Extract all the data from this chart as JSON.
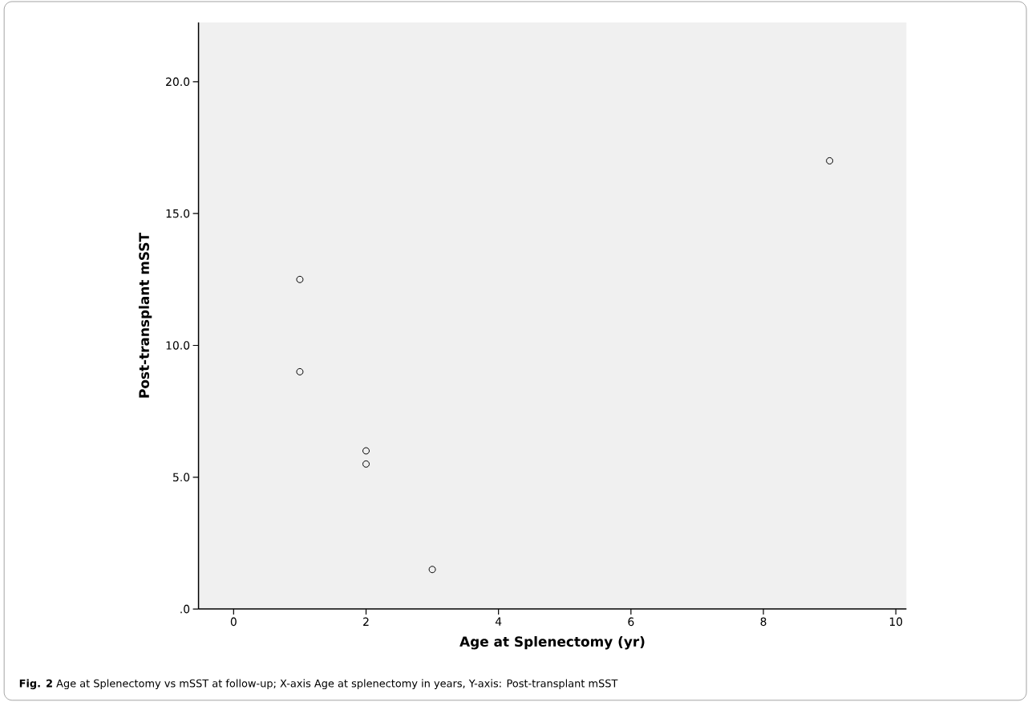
{
  "chart_data": {
    "type": "scatter",
    "xlabel": "Age at Splenectomy (yr)",
    "ylabel": "Post-transplant mSST",
    "x": [
      1,
      1,
      2,
      2,
      3,
      9
    ],
    "values": [
      12.5,
      9,
      6,
      5.5,
      1.5,
      17
    ],
    "color": "#000000",
    "marker": "circle",
    "xlim": [
      -0.53,
      10.16
    ],
    "ylim": [
      0,
      22.25
    ],
    "xticks": [
      0,
      2,
      4,
      6,
      8,
      10
    ],
    "yticks": [
      {
        "value": 0,
        "label": ".0"
      },
      {
        "value": 5,
        "label": "5.0"
      },
      {
        "value": 10,
        "label": "10.0"
      },
      {
        "value": 15,
        "label": "15.0"
      },
      {
        "value": 20,
        "label": "20.0"
      }
    ],
    "annotations": [
      "**Fig. 2** Age at Splenectomy vs mSST at follow-up; X-axis Age at splenectomy in years, Y-axis: Post-transplant mSST"
    ]
  }
}
